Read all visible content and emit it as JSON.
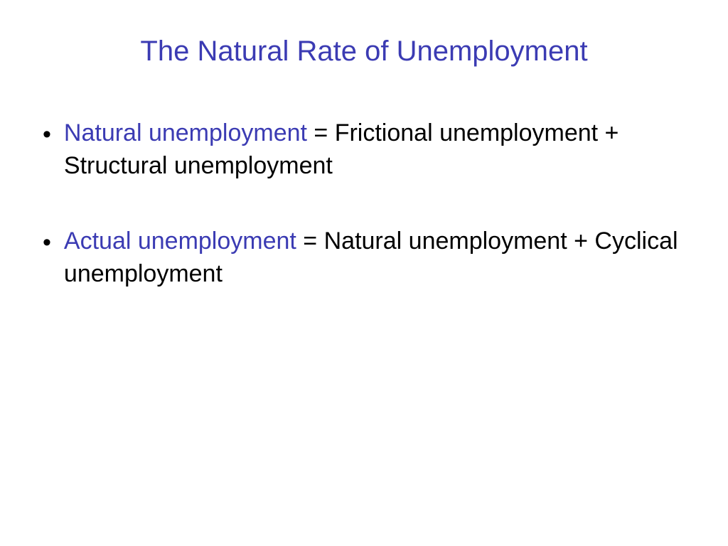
{
  "title": {
    "text": "The Natural Rate of Unemployment",
    "color": "#3b3bb3",
    "fontsize": 40
  },
  "bullets": [
    {
      "term": "Natural unemployment",
      "rest": " = Frictional unemployment + Structural unemployment",
      "term_color": "#3b3bb3",
      "rest_color": "#000000"
    },
    {
      "term": "Actual unemployment",
      "rest": " = Natural unemployment + Cyclical unemployment",
      "term_color": "#3b3bb3",
      "rest_color": "#000000"
    }
  ],
  "style": {
    "background_color": "#ffffff",
    "body_fontsize": 34,
    "bullet_color": "#000000"
  }
}
